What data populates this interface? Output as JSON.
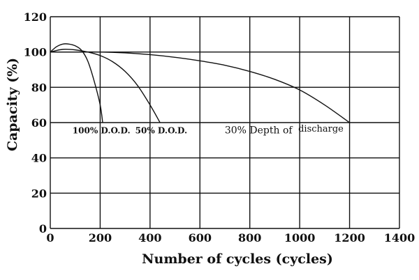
{
  "chart_data": {
    "type": "line",
    "title": "",
    "xlabel": "Number of cycles (cycles)",
    "ylabel": "Capacity (%)",
    "xlim": [
      0,
      1400
    ],
    "ylim": [
      0,
      120
    ],
    "x_ticks": [
      "0",
      "200",
      "400",
      "600",
      "800",
      "1000",
      "1200",
      "1400"
    ],
    "y_ticks": [
      "0",
      "20",
      "40",
      "60",
      "80",
      "100",
      "120"
    ],
    "grid": true,
    "series": [
      {
        "name": "100% D.O.D.",
        "x": [
          0,
          25,
          50,
          75,
          100,
          125,
          150,
          175,
          200,
          210
        ],
        "y": [
          100,
          103,
          104.5,
          104.5,
          103.5,
          101,
          95,
          84,
          70,
          60
        ]
      },
      {
        "name": "50% D.O.D.",
        "x": [
          0,
          50,
          100,
          150,
          200,
          250,
          300,
          350,
          400,
          440
        ],
        "y": [
          100,
          101.5,
          101.2,
          100,
          98,
          94.5,
          89,
          81,
          70,
          60
        ]
      },
      {
        "name": "30% Depth of discharge",
        "x": [
          0,
          100,
          200,
          300,
          400,
          500,
          600,
          700,
          800,
          900,
          1000,
          1100,
          1200
        ],
        "y": [
          100,
          100,
          100,
          99.5,
          98.5,
          97,
          95,
          92.5,
          89,
          84.5,
          78.5,
          70,
          60
        ]
      }
    ],
    "annotations": [
      {
        "text": "100% D.O.D.",
        "x": 205,
        "y": 57
      },
      {
        "text": "50% D.O.D.",
        "x": 445,
        "y": 57
      },
      {
        "text": "30% Depth of",
        "x": 835,
        "y": 57
      },
      {
        "text": "discharge",
        "x": 1085,
        "y": 58
      }
    ]
  }
}
